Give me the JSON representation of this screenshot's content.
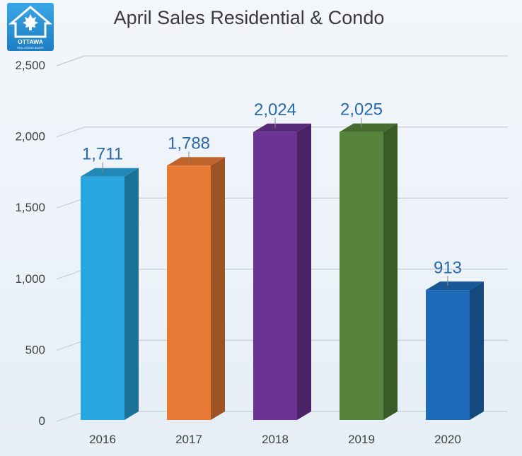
{
  "logo": {
    "text_main": "OTTAWA",
    "text_sub": "REAL ESTATE BOARD",
    "color": "#1f8ed0"
  },
  "chart_data": {
    "type": "bar",
    "title": "April Sales Residential & Condo",
    "categories": [
      "2016",
      "2017",
      "2018",
      "2019",
      "2020"
    ],
    "values": [
      1711,
      1788,
      2024,
      2025,
      913
    ],
    "data_labels": [
      "1,711",
      "1,788",
      "2,024",
      "2,025",
      "913"
    ],
    "colors": [
      "#29a6e0",
      "#e87a36",
      "#6b3494",
      "#56843b",
      "#1d6bb8"
    ],
    "ylim": [
      0,
      2500
    ],
    "yticks": [
      0,
      500,
      1000,
      1500,
      2000,
      2500
    ],
    "ytick_labels": [
      "0",
      "500",
      "1,000",
      "1,500",
      "2,000",
      "2,500"
    ],
    "xlabel": "",
    "ylabel": "",
    "grid": true,
    "style": "3d-column",
    "label_color": "#2a6aa8"
  }
}
